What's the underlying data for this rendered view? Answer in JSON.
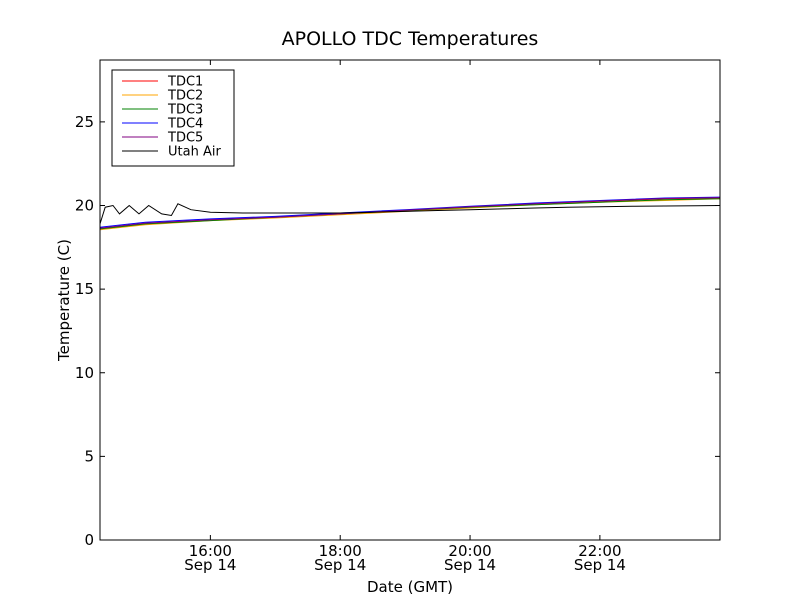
{
  "chart_data": {
    "type": "line",
    "title": "APOLLO TDC Temperatures",
    "xlabel": "Date (GMT)",
    "ylabel": "Temperature (C)",
    "xlim_hours": [
      14.3,
      23.85
    ],
    "ylim": [
      0,
      28.7
    ],
    "grid": false,
    "legend_placement": "top-left",
    "x_ticks": [
      {
        "hour": 16,
        "time": "16:00",
        "date": "Sep 14"
      },
      {
        "hour": 18,
        "time": "18:00",
        "date": "Sep 14"
      },
      {
        "hour": 20,
        "time": "20:00",
        "date": "Sep 14"
      },
      {
        "hour": 22,
        "time": "22:00",
        "date": "Sep 14"
      }
    ],
    "y_ticks": [
      0,
      5,
      10,
      15,
      20,
      25
    ],
    "series": [
      {
        "name": "TDC1",
        "color": "#ff0000",
        "x": [
          14.3,
          15,
          16,
          17,
          18,
          19,
          20,
          21,
          22,
          23,
          23.85
        ],
        "y": [
          18.6,
          18.9,
          19.15,
          19.3,
          19.5,
          19.7,
          19.9,
          20.1,
          20.25,
          20.4,
          20.45
        ]
      },
      {
        "name": "TDC2",
        "color": "#ffa500",
        "x": [
          14.3,
          15,
          16,
          17,
          18,
          19,
          20,
          21,
          22,
          23,
          23.85
        ],
        "y": [
          18.55,
          18.85,
          19.1,
          19.25,
          19.45,
          19.65,
          19.85,
          20.05,
          20.2,
          20.3,
          20.4
        ]
      },
      {
        "name": "TDC3",
        "color": "#008000",
        "x": [
          14.3,
          15,
          16,
          17,
          18,
          19,
          20,
          21,
          22,
          23,
          23.85
        ],
        "y": [
          18.6,
          18.9,
          19.1,
          19.3,
          19.5,
          19.7,
          19.9,
          20.05,
          20.2,
          20.35,
          20.4
        ]
      },
      {
        "name": "TDC4",
        "color": "#0000ff",
        "x": [
          14.3,
          15,
          16,
          17,
          18,
          19,
          20,
          21,
          22,
          23,
          23.85
        ],
        "y": [
          18.7,
          19.0,
          19.2,
          19.35,
          19.55,
          19.75,
          19.95,
          20.15,
          20.3,
          20.45,
          20.5
        ]
      },
      {
        "name": "TDC5",
        "color": "#800080",
        "x": [
          14.3,
          15,
          16,
          17,
          18,
          19,
          20,
          21,
          22,
          23,
          23.85
        ],
        "y": [
          18.65,
          18.95,
          19.15,
          19.3,
          19.5,
          19.72,
          19.92,
          20.1,
          20.27,
          20.42,
          20.47
        ]
      },
      {
        "name": "Utah Air",
        "color": "#000000",
        "x": [
          14.3,
          14.38,
          14.5,
          14.6,
          14.75,
          14.9,
          15.05,
          15.25,
          15.4,
          15.5,
          15.7,
          16,
          16.5,
          17,
          17.5,
          18,
          18.5,
          19,
          19.5,
          20,
          20.5,
          21,
          21.5,
          22,
          22.5,
          23,
          23.5,
          23.85
        ],
        "y": [
          18.9,
          19.9,
          20.0,
          19.5,
          20.0,
          19.5,
          20.0,
          19.5,
          19.4,
          20.1,
          19.75,
          19.6,
          19.55,
          19.55,
          19.55,
          19.55,
          19.6,
          19.65,
          19.7,
          19.75,
          19.8,
          19.85,
          19.9,
          19.92,
          19.95,
          19.97,
          19.98,
          20.0
        ]
      }
    ]
  }
}
